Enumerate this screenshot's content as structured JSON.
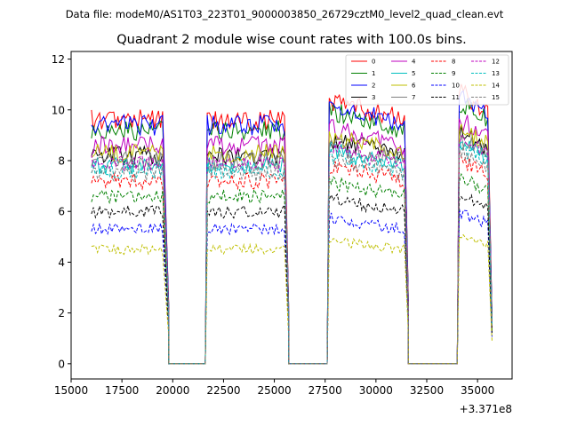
{
  "chart_data": {
    "type": "line",
    "suptitle": "Data file: modeM0/AS1T03_223T01_9000003850_26729cztM0_level2_quad_clean.evt",
    "title": "Quadrant 2 module wise count rates with 100.0s bins.",
    "xlabel": "",
    "ylabel": "",
    "x_offset_label": "+3.371e8",
    "xlim": [
      15000,
      36700
    ],
    "ylim": [
      -0.6,
      12.3
    ],
    "xticks": [
      15000,
      17500,
      20000,
      22500,
      25000,
      27500,
      30000,
      32500,
      35000
    ],
    "xtick_labels": [
      "15000",
      "17500",
      "20000",
      "22500",
      "25000",
      "27500",
      "30000",
      "32500",
      "35000"
    ],
    "yticks": [
      0,
      2,
      4,
      6,
      8,
      10,
      12
    ],
    "ytick_labels": [
      "0",
      "2",
      "4",
      "6",
      "8",
      "10",
      "12"
    ],
    "grid": false,
    "legend_position": "top-right",
    "bin_size": 100,
    "segments": [
      {
        "start": 16000,
        "end": 19500,
        "decay_to": 19800,
        "peak_scale": 1.0
      },
      {
        "start": 21700,
        "end": 25500,
        "decay_to": 25700,
        "peak_scale": 1.0
      },
      {
        "start": 27700,
        "end": 31400,
        "decay_to": 31600,
        "peak_scale": 1.08
      },
      {
        "start": 34100,
        "end": 35500,
        "decay_to": 35700,
        "peak_scale": 1.12
      }
    ],
    "gaps_zero": [
      [
        19800,
        21600
      ],
      [
        25700,
        27600
      ],
      [
        31600,
        34000
      ]
    ],
    "series": [
      {
        "name": "0",
        "color": "#ff0000",
        "dash": "solid",
        "level": 9.6
      },
      {
        "name": "1",
        "color": "#008000",
        "dash": "solid",
        "level": 9.2
      },
      {
        "name": "2",
        "color": "#0000ff",
        "dash": "solid",
        "level": 9.4
      },
      {
        "name": "3",
        "color": "#000000",
        "dash": "solid",
        "level": 8.2
      },
      {
        "name": "4",
        "color": "#bf00bf",
        "dash": "solid",
        "level": 8.6
      },
      {
        "name": "5",
        "color": "#00bfbf",
        "dash": "solid",
        "level": 7.8
      },
      {
        "name": "6",
        "color": "#bfbf00",
        "dash": "solid",
        "level": 8.3
      },
      {
        "name": "7",
        "color": "#808080",
        "dash": "solid",
        "level": 8.0
      },
      {
        "name": "8",
        "color": "#ff0000",
        "dash": "dashed",
        "level": 7.2
      },
      {
        "name": "9",
        "color": "#008000",
        "dash": "dashed",
        "level": 6.6
      },
      {
        "name": "10",
        "color": "#0000ff",
        "dash": "dashed",
        "level": 5.3
      },
      {
        "name": "11",
        "color": "#000000",
        "dash": "dashed",
        "level": 6.0
      },
      {
        "name": "12",
        "color": "#bf00bf",
        "dash": "dashed",
        "level": 7.9
      },
      {
        "name": "13",
        "color": "#00bfbf",
        "dash": "dashed",
        "level": 7.6
      },
      {
        "name": "14",
        "color": "#bfbf00",
        "dash": "dashed",
        "level": 4.5
      },
      {
        "name": "15",
        "color": "#808080",
        "dash": "dashed",
        "level": 7.5
      }
    ]
  }
}
